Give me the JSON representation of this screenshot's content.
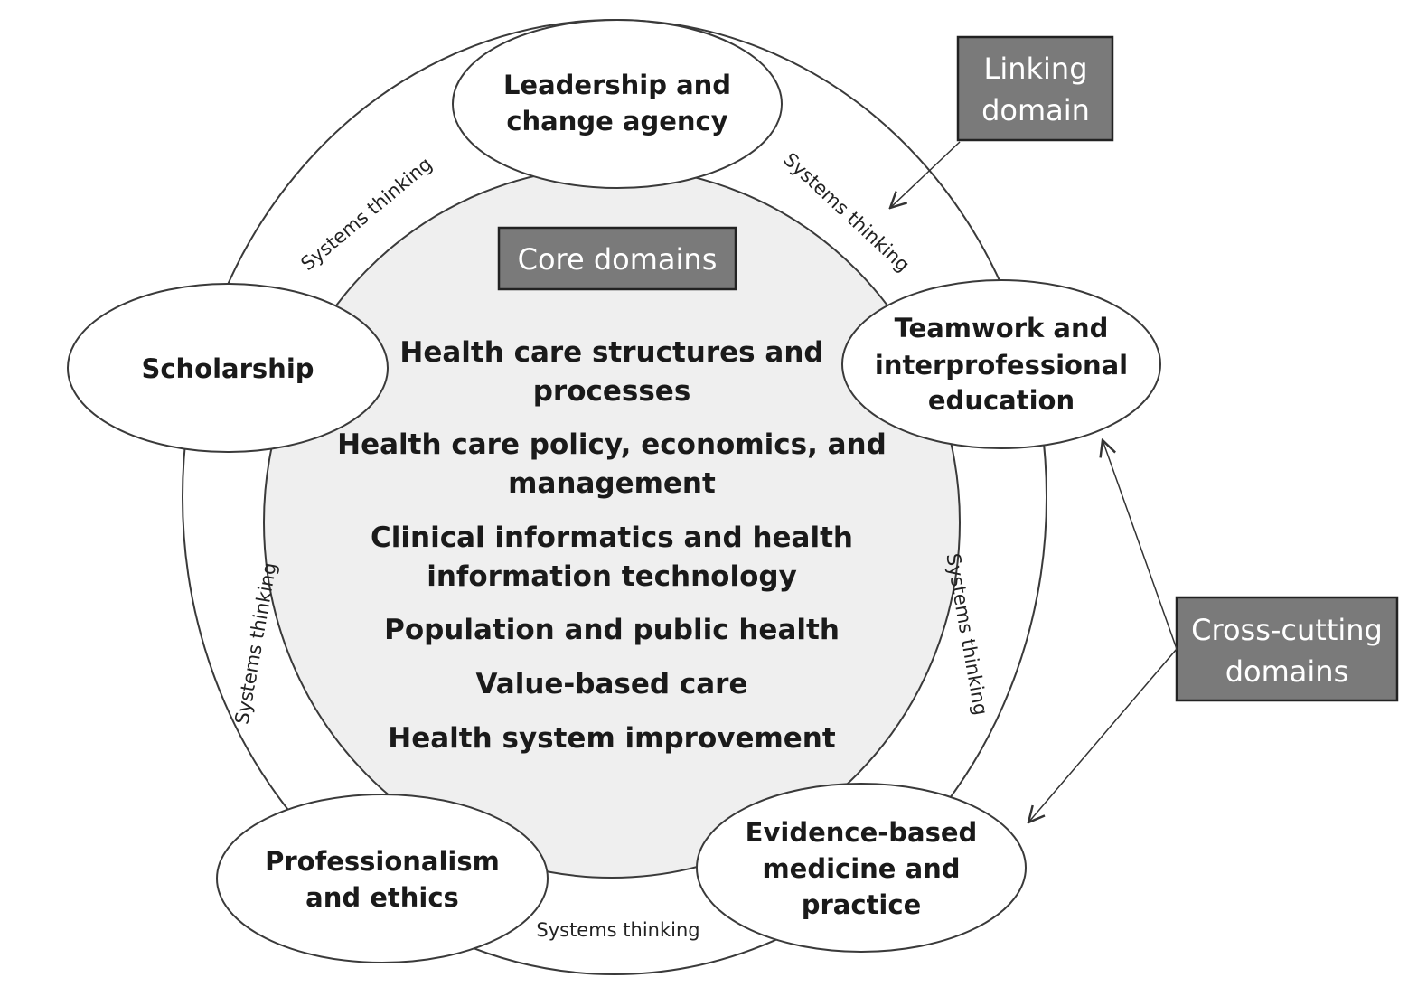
{
  "title_box": "Core domains",
  "core_items": [
    [
      "Health care structures and",
      "processes"
    ],
    [
      "Health care policy, economics, and",
      "management"
    ],
    [
      "Clinical informatics and health",
      "information technology"
    ],
    [
      "Population and public health"
    ],
    [
      "Value-based care"
    ],
    [
      "Health system improvement"
    ]
  ],
  "ovals": {
    "leadership": [
      "Leadership and",
      "change agency"
    ],
    "teamwork": [
      "Teamwork and",
      "interprofessional",
      "education"
    ],
    "evidence": [
      "Evidence-based",
      "medicine and",
      "practice"
    ],
    "professionalism": [
      "Professionalism",
      "and ethics"
    ],
    "scholarship": [
      "Scholarship"
    ]
  },
  "systems_thinking": "Systems thinking",
  "linking_box": [
    "Linking",
    "domain"
  ],
  "crosscutting_box": [
    "Cross-cutting",
    "domains"
  ],
  "colors": {
    "box_fill": "#7a7a7a",
    "core_fill": "#efefef",
    "stroke": "#3a3a3a"
  }
}
